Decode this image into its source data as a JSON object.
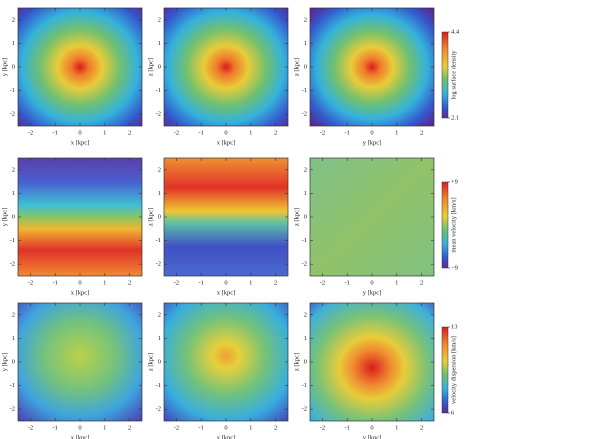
{
  "chart_data": [
    {
      "type": "heatmap",
      "xlabel": "x [kpc]",
      "ylabel": "y [kpc]",
      "xlim": [
        -2.5,
        2.5
      ],
      "ylim": [
        -2.5,
        2.5
      ],
      "xticks": [
        -2,
        -1,
        0,
        1,
        2
      ],
      "yticks": [
        -2,
        -1,
        0,
        1,
        2
      ]
    },
    {
      "type": "heatmap",
      "xlabel": "x [kpc]",
      "ylabel": "z [kpc]",
      "xlim": [
        -2.5,
        2.5
      ],
      "ylim": [
        -2.5,
        2.5
      ],
      "xticks": [
        -2,
        -1,
        0,
        1,
        2
      ],
      "yticks": [
        -2,
        -1,
        0,
        1,
        2
      ]
    },
    {
      "type": "heatmap",
      "xlabel": "y [kpc]",
      "ylabel": "z [kpc]",
      "xlim": [
        -2.5,
        2.5
      ],
      "ylim": [
        -2.5,
        2.5
      ],
      "xticks": [
        -2,
        -1,
        0,
        1,
        2
      ],
      "yticks": [
        -2,
        -1,
        0,
        1,
        2
      ],
      "colorbar": {
        "label": "log surface density",
        "lim": [
          2.1,
          4.4
        ],
        "ticks": [
          2.1,
          4.4
        ]
      }
    },
    {
      "type": "heatmap",
      "xlabel": "x [kpc]",
      "ylabel": "y [kpc]",
      "xlim": [
        -2.5,
        2.5
      ],
      "ylim": [
        -2.5,
        2.5
      ],
      "xticks": [
        -2,
        -1,
        0,
        1,
        2
      ],
      "yticks": [
        -2,
        -1,
        0,
        1,
        2
      ]
    },
    {
      "type": "heatmap",
      "xlabel": "x [kpc]",
      "ylabel": "z [kpc]",
      "xlim": [
        -2.5,
        2.5
      ],
      "ylim": [
        -2.5,
        2.5
      ],
      "xticks": [
        -2,
        -1,
        0,
        1,
        2
      ],
      "yticks": [
        -2,
        -1,
        0,
        1,
        2
      ]
    },
    {
      "type": "heatmap",
      "xlabel": "y [kpc]",
      "ylabel": "z [kpc]",
      "xlim": [
        -2.5,
        2.5
      ],
      "ylim": [
        -2.5,
        2.5
      ],
      "xticks": [
        -2,
        -1,
        0,
        1,
        2
      ],
      "yticks": [
        -2,
        -1,
        0,
        1,
        2
      ],
      "colorbar": {
        "label": "mean velocity [km/s]",
        "lim": [
          -9,
          9
        ],
        "ticks": [
          {
            "value": -9,
            "label": "−9"
          },
          {
            "value": 9,
            "label": "+9"
          }
        ]
      }
    },
    {
      "type": "heatmap",
      "xlabel": "x [kpc]",
      "ylabel": "y [kpc]",
      "xlim": [
        -2.5,
        2.5
      ],
      "ylim": [
        -2.5,
        2.5
      ],
      "xticks": [
        -2,
        -1,
        0,
        1,
        2
      ],
      "yticks": [
        -2,
        -1,
        0,
        1,
        2
      ]
    },
    {
      "type": "heatmap",
      "xlabel": "x [kpc]",
      "ylabel": "z [kpc]",
      "xlim": [
        -2.5,
        2.5
      ],
      "ylim": [
        -2.5,
        2.5
      ],
      "xticks": [
        -2,
        -1,
        0,
        1,
        2
      ],
      "yticks": [
        -2,
        -1,
        0,
        1,
        2
      ]
    },
    {
      "type": "heatmap",
      "xlabel": "y [kpc]",
      "ylabel": "z [kpc]",
      "xlim": [
        -2.5,
        2.5
      ],
      "ylim": [
        -2.5,
        2.5
      ],
      "xticks": [
        -2,
        -1,
        0,
        1,
        2
      ],
      "yticks": [
        -2,
        -1,
        0,
        1,
        2
      ],
      "colorbar": {
        "label": "velocity dispersion [km/s]",
        "lim": [
          6,
          13
        ],
        "ticks": [
          6,
          13
        ]
      }
    }
  ]
}
